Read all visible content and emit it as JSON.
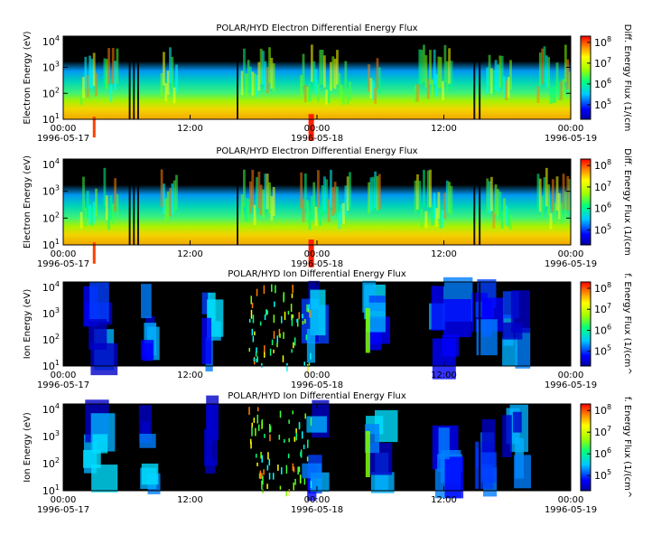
{
  "colorbar": {
    "ticks": [
      {
        "mant": "10",
        "exp": "8",
        "v": 8
      },
      {
        "mant": "10",
        "exp": "7",
        "v": 7
      },
      {
        "mant": "10",
        "exp": "6",
        "v": 6
      },
      {
        "mant": "10",
        "exp": "5",
        "v": 5
      }
    ],
    "range": [
      4.3,
      8.3
    ]
  },
  "chart_data": [
    {
      "type": "heatmap",
      "title": "POLAR/HYD  Electron Differential Energy Flux",
      "ylabel": "Electron Energy (eV)",
      "colorbar_label": "Diff. Energy Flux (1/(cm",
      "yticks": [
        {
          "mant": "10",
          "exp": "1",
          "v": 1
        },
        {
          "mant": "10",
          "exp": "2",
          "v": 2
        },
        {
          "mant": "10",
          "exp": "3",
          "v": 3
        },
        {
          "mant": "10",
          "exp": "4",
          "v": 4
        }
      ],
      "ylim_log10": [
        1,
        4.2
      ],
      "xticks": [
        {
          "time": "00:00",
          "date": "1996-05-17",
          "h": 0
        },
        {
          "time": "12:00",
          "date": "",
          "h": 12
        },
        {
          "time": "00:00",
          "date": "1996-05-18",
          "h": 24
        },
        {
          "time": "12:00",
          "date": "",
          "h": 36
        },
        {
          "time": "00:00",
          "date": "1996-05-19",
          "h": 48
        }
      ],
      "xlim_hours": [
        0,
        48
      ],
      "gap_hours": [
        0,
        0
      ]
    },
    {
      "type": "heatmap",
      "title": "POLAR/HYD  Electron Differential Energy Flux",
      "ylabel": "Electron Energy (eV)",
      "colorbar_label": "Diff. Energy Flux (1/(cm",
      "yticks": [
        {
          "mant": "10",
          "exp": "1",
          "v": 1
        },
        {
          "mant": "10",
          "exp": "2",
          "v": 2
        },
        {
          "mant": "10",
          "exp": "3",
          "v": 3
        },
        {
          "mant": "10",
          "exp": "4",
          "v": 4
        }
      ],
      "ylim_log10": [
        1,
        4.2
      ],
      "xticks": [
        {
          "time": "00:00",
          "date": "1996-05-17",
          "h": 0
        },
        {
          "time": "12:00",
          "date": "",
          "h": 12
        },
        {
          "time": "00:00",
          "date": "1996-05-18",
          "h": 24
        },
        {
          "time": "12:00",
          "date": "",
          "h": 36
        },
        {
          "time": "00:00",
          "date": "1996-05-19",
          "h": 48
        }
      ],
      "xlim_hours": [
        0,
        48
      ],
      "gap_hours": [
        0,
        0
      ]
    },
    {
      "type": "heatmap",
      "title": "POLAR/HYD  Ion Differential Energy Flux",
      "ylabel": "Ion Energy (eV)",
      "colorbar_label": "f. Energy Flux (1/(cm^",
      "yticks": [
        {
          "mant": "10",
          "exp": "1",
          "v": 1
        },
        {
          "mant": "10",
          "exp": "2",
          "v": 2
        },
        {
          "mant": "10",
          "exp": "3",
          "v": 3
        },
        {
          "mant": "10",
          "exp": "4",
          "v": 4
        }
      ],
      "ylim_log10": [
        1,
        4.2
      ],
      "xticks": [
        {
          "time": "00:00",
          "date": "1996-05-17",
          "h": 0
        },
        {
          "time": "12:00",
          "date": "",
          "h": 12
        },
        {
          "time": "00:00",
          "date": "1996-05-18",
          "h": 24
        },
        {
          "time": "12:00",
          "date": "",
          "h": 36
        },
        {
          "time": "00:00",
          "date": "1996-05-19",
          "h": 48
        }
      ],
      "xlim_hours": [
        0,
        48
      ],
      "gap_hours": [
        0,
        0
      ]
    },
    {
      "type": "heatmap",
      "title": "POLAR/HYD  Ion Differential Energy Flux",
      "ylabel": "Ion Energy (eV)",
      "colorbar_label": "f. Energy Flux (1/(cm^",
      "yticks": [
        {
          "mant": "10",
          "exp": "1",
          "v": 1
        },
        {
          "mant": "10",
          "exp": "2",
          "v": 2
        },
        {
          "mant": "10",
          "exp": "3",
          "v": 3
        },
        {
          "mant": "10",
          "exp": "4",
          "v": 4
        }
      ],
      "ylim_log10": [
        1,
        4.2
      ],
      "xticks": [
        {
          "time": "00:00",
          "date": "1996-05-17",
          "h": 0
        },
        {
          "time": "12:00",
          "date": "",
          "h": 12
        },
        {
          "time": "00:00",
          "date": "1996-05-18",
          "h": 24
        },
        {
          "time": "12:00",
          "date": "",
          "h": 36
        },
        {
          "time": "00:00",
          "date": "1996-05-19",
          "h": 48
        }
      ],
      "xlim_hours": [
        0,
        48
      ],
      "gap_hours": [
        0,
        0
      ]
    }
  ]
}
